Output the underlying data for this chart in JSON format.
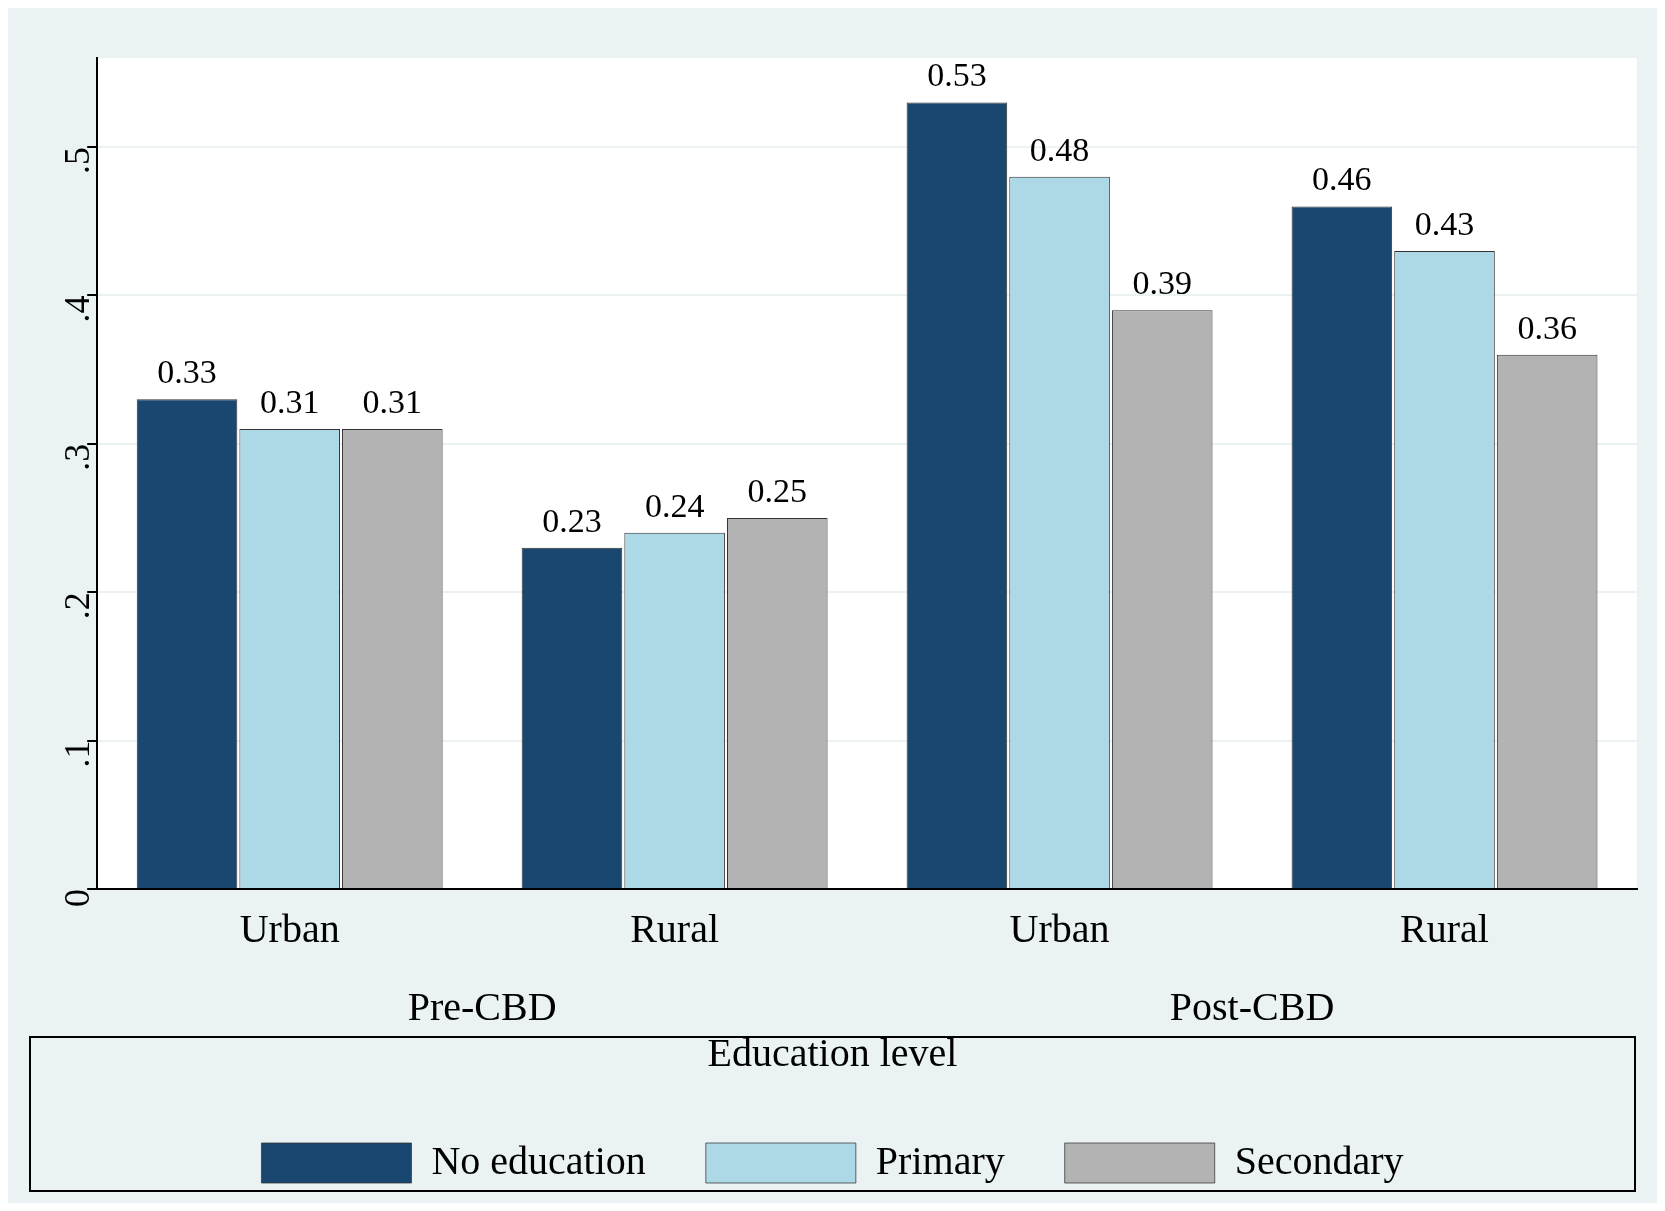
{
  "chart_data": {
    "type": "bar",
    "categories": [
      "Urban",
      "Rural",
      "Urban",
      "Rural"
    ],
    "series": [
      {
        "name": "No education",
        "color": "#1a476f",
        "values": [
          0.33,
          0.23,
          0.53,
          0.46
        ]
      },
      {
        "name": "Primary",
        "color": "#add8e6",
        "values": [
          0.31,
          0.24,
          0.48,
          0.43
        ]
      },
      {
        "name": "Secondary",
        "color": "#b3b3b3",
        "values": [
          0.31,
          0.25,
          0.39,
          0.36
        ]
      }
    ],
    "ylim": [
      0,
      0.56
    ],
    "yticks": [
      0,
      {
        "value": 0.1,
        "label": ".1"
      },
      {
        "value": 0.2,
        "label": ".2"
      },
      {
        "value": 0.3,
        "label": ".3"
      },
      {
        "value": 0.4,
        "label": ".4"
      },
      {
        "value": 0.5,
        "label": ".5"
      }
    ],
    "grid": "y",
    "data_labels": true,
    "legend": "bottom",
    "legend_title": "Education level",
    "annotations": [
      "Pre-CBD",
      "Post-CBD"
    ]
  }
}
